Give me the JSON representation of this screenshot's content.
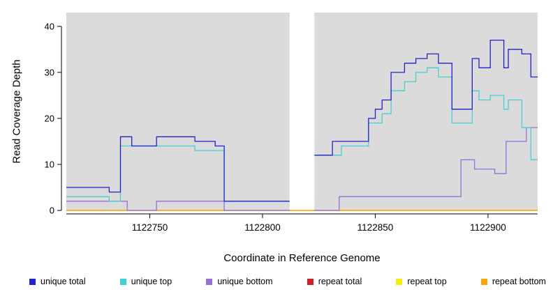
{
  "figure": {
    "x_axis_title": "Coordinate in Reference Genome",
    "y_axis_title": "Read Coverage Depth"
  },
  "legend": {
    "items": [
      {
        "label": "unique total",
        "color": "#2222CC"
      },
      {
        "label": "unique top",
        "color": "#44D0D0"
      },
      {
        "label": "unique bottom",
        "color": "#9370DB"
      },
      {
        "label": "repeat total",
        "color": "#CC2222"
      },
      {
        "label": "repeat top",
        "color": "#F2F200"
      },
      {
        "label": "repeat bottom",
        "color": "#FFA500"
      }
    ]
  },
  "chart_data": {
    "type": "line",
    "step": true,
    "title": "",
    "xlabel": "Coordinate in Reference Genome",
    "ylabel": "Read Coverage Depth",
    "x_range": [
      1122713,
      1122922
    ],
    "y_range": [
      0,
      43
    ],
    "x_ticks": [
      1122750,
      1122800,
      1122850,
      1122900
    ],
    "y_ticks": [
      0,
      10,
      20,
      30,
      40
    ],
    "gap_region": [
      1122812,
      1122823
    ],
    "panel_color": "#DBDBDB",
    "background": "#FFFFFF",
    "series": [
      {
        "name": "repeat total",
        "color": "#CC2222",
        "segments": [
          [
            [
              1122713,
              0
            ],
            [
              1122922,
              0
            ]
          ]
        ]
      },
      {
        "name": "repeat top",
        "color": "#F2F200",
        "segments": [
          [
            [
              1122713,
              0
            ],
            [
              1122922,
              0
            ]
          ]
        ]
      },
      {
        "name": "repeat bottom",
        "color": "#FFA500",
        "segments": [
          [
            [
              1122713,
              0
            ],
            [
              1122922,
              0
            ]
          ]
        ]
      },
      {
        "name": "unique bottom",
        "color": "#9370DB",
        "segments": [
          [
            [
              1122713,
              2
            ],
            [
              1122740,
              0
            ],
            [
              1122753,
              2
            ],
            [
              1122783,
              0
            ],
            [
              1122812,
              0
            ]
          ],
          [
            [
              1122823,
              0
            ],
            [
              1122834,
              3
            ],
            [
              1122888,
              11
            ],
            [
              1122894,
              9
            ],
            [
              1122903,
              8
            ],
            [
              1122908,
              15
            ],
            [
              1122917,
              18
            ],
            [
              1122922,
              18
            ]
          ]
        ]
      },
      {
        "name": "unique top",
        "color": "#44D0D0",
        "segments": [
          [
            [
              1122713,
              3
            ],
            [
              1122732,
              2
            ],
            [
              1122737,
              14
            ],
            [
              1122770,
              13
            ],
            [
              1122783,
              2
            ],
            [
              1122812,
              2
            ]
          ],
          [
            [
              1122823,
              12
            ],
            [
              1122835,
              14
            ],
            [
              1122847,
              19
            ],
            [
              1122853,
              21
            ],
            [
              1122857,
              26
            ],
            [
              1122863,
              28
            ],
            [
              1122868,
              30
            ],
            [
              1122873,
              31
            ],
            [
              1122878,
              29
            ],
            [
              1122884,
              19
            ],
            [
              1122893,
              26
            ],
            [
              1122896,
              24
            ],
            [
              1122901,
              25
            ],
            [
              1122907,
              22
            ],
            [
              1122909,
              24
            ],
            [
              1122915,
              18
            ],
            [
              1122919,
              11
            ],
            [
              1122922,
              11
            ]
          ]
        ]
      },
      {
        "name": "unique total",
        "color": "#2222CC",
        "segments": [
          [
            [
              1122713,
              5
            ],
            [
              1122732,
              4
            ],
            [
              1122737,
              16
            ],
            [
              1122742,
              14
            ],
            [
              1122753,
              16
            ],
            [
              1122770,
              15
            ],
            [
              1122779,
              14
            ],
            [
              1122783,
              2
            ],
            [
              1122812,
              2
            ]
          ],
          [
            [
              1122823,
              12
            ],
            [
              1122831,
              15
            ],
            [
              1122847,
              20
            ],
            [
              1122850,
              22
            ],
            [
              1122853,
              24
            ],
            [
              1122857,
              30
            ],
            [
              1122863,
              32
            ],
            [
              1122868,
              33
            ],
            [
              1122873,
              34
            ],
            [
              1122878,
              32
            ],
            [
              1122884,
              22
            ],
            [
              1122893,
              33
            ],
            [
              1122896,
              31
            ],
            [
              1122901,
              37
            ],
            [
              1122907,
              31
            ],
            [
              1122909,
              35
            ],
            [
              1122915,
              34
            ],
            [
              1122919,
              29
            ],
            [
              1122922,
              29
            ]
          ]
        ]
      }
    ]
  }
}
